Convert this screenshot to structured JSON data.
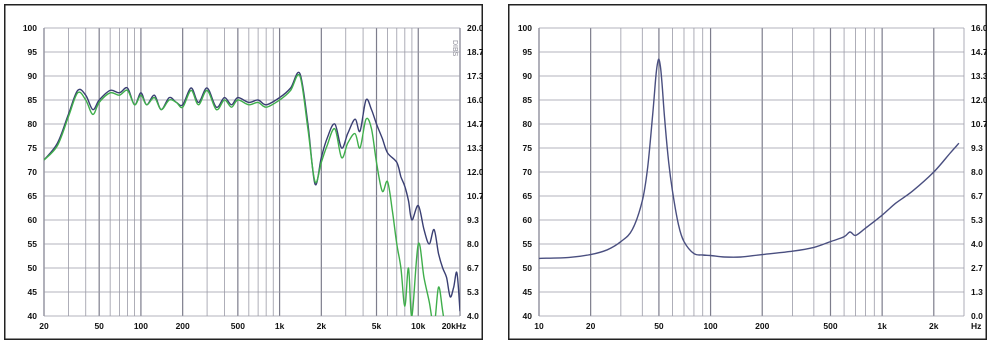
{
  "brand": "DIBS",
  "chart_data": [
    {
      "type": "line",
      "x_scale": "log",
      "xlim": [
        20,
        20000
      ],
      "ylim": [
        40,
        100
      ],
      "ylim_right": [
        4.0,
        20.0
      ],
      "x_ticks": [
        20,
        50,
        100,
        200,
        500,
        1000,
        2000,
        5000,
        10000,
        20000
      ],
      "x_tick_labels": [
        "20",
        "50",
        "100",
        "200",
        "500",
        "1k",
        "2k",
        "5k",
        "10k",
        "20kHz"
      ],
      "y_ticks_left": [
        "40",
        "45",
        "50",
        "55",
        "60",
        "65",
        "70",
        "75",
        "80",
        "85",
        "90",
        "95",
        "100"
      ],
      "y_ticks_right": [
        "4.0",
        "5.3",
        "6.7",
        "8.0",
        "9.3",
        "10.7",
        "12.0",
        "13.3",
        "14.7",
        "16.0",
        "17.3",
        "18.7",
        "20.0"
      ],
      "grid": true,
      "series": [
        {
          "color": "#3a3f73",
          "x": [
            20,
            25,
            30,
            35,
            40,
            45,
            50,
            60,
            70,
            80,
            90,
            100,
            110,
            125,
            140,
            160,
            180,
            200,
            230,
            260,
            300,
            350,
            400,
            450,
            500,
            600,
            700,
            800,
            1000,
            1200,
            1400,
            1600,
            1800,
            2000,
            2200,
            2500,
            2800,
            3100,
            3500,
            3800,
            4200,
            4600,
            5000,
            5500,
            6000,
            7000,
            7500,
            8000,
            8500,
            9000,
            10000,
            11000,
            12000,
            13000,
            14000,
            15000,
            16000,
            17000,
            18000,
            19000,
            20000
          ],
          "y": [
            72.5,
            76,
            82,
            87,
            86,
            83,
            85,
            87,
            86.5,
            87.5,
            84,
            86.5,
            84,
            86,
            83,
            85.5,
            84.5,
            84,
            87.5,
            84.5,
            87.5,
            83.5,
            85.5,
            84,
            85.5,
            84.5,
            85,
            84,
            85.5,
            87.5,
            90.5,
            80,
            67.5,
            73,
            77,
            80,
            75,
            78,
            81,
            78.5,
            85,
            83,
            80,
            77,
            74,
            72,
            69,
            67,
            64,
            60,
            63,
            58,
            55,
            58,
            53,
            50,
            48,
            44,
            46,
            49,
            41
          ]
        },
        {
          "color": "#3fae4b",
          "x": [
            20,
            25,
            30,
            35,
            40,
            45,
            50,
            60,
            70,
            80,
            90,
            100,
            110,
            125,
            140,
            160,
            180,
            200,
            230,
            260,
            300,
            350,
            400,
            450,
            500,
            600,
            700,
            800,
            1000,
            1200,
            1400,
            1600,
            1800,
            2000,
            2200,
            2500,
            2800,
            3100,
            3500,
            3800,
            4200,
            4600,
            5000,
            5500,
            6000,
            6500,
            7000,
            7500,
            8000,
            8500,
            9000,
            10000,
            11000,
            12000,
            13000,
            14000,
            15000,
            16000,
            17000
          ],
          "y": [
            72.5,
            75.5,
            81.5,
            86.5,
            85,
            82,
            84.5,
            86.5,
            86,
            87,
            84,
            86,
            84,
            85.5,
            83,
            85,
            84.5,
            83.5,
            87,
            84,
            87,
            83,
            85,
            83.5,
            85,
            84,
            84.5,
            83.5,
            85,
            87,
            90,
            79,
            68,
            72,
            75.5,
            79,
            73,
            76,
            78,
            75,
            81,
            79,
            72,
            66,
            68,
            62,
            55,
            50,
            42,
            50,
            40,
            55,
            48,
            43,
            38,
            46,
            41,
            36,
            38
          ]
        }
      ]
    },
    {
      "type": "line",
      "x_scale": "log",
      "xlim": [
        10,
        3000
      ],
      "ylim": [
        40,
        100
      ],
      "ylim_right": [
        0.0,
        16.0
      ],
      "x_ticks": [
        10,
        20,
        50,
        100,
        200,
        500,
        1000,
        2000
      ],
      "x_tick_labels": [
        "10",
        "20",
        "50",
        "100",
        "200",
        "500",
        "1k",
        "2k"
      ],
      "x_unit_label": "Hz",
      "y_ticks_left": [
        "40",
        "45",
        "50",
        "55",
        "60",
        "65",
        "70",
        "75",
        "80",
        "85",
        "90",
        "95",
        "100"
      ],
      "y_ticks_right": [
        "0.0",
        "1.3",
        "2.7",
        "4.0",
        "5.3",
        "6.7",
        "8.0",
        "9.3",
        "10.7",
        "12.0",
        "13.3",
        "14.7",
        "16.0"
      ],
      "grid": true,
      "series": [
        {
          "color": "#4a4f80",
          "x": [
            10,
            15,
            20,
            25,
            30,
            35,
            40,
            43,
            46,
            48,
            49,
            50,
            51,
            52,
            54,
            57,
            60,
            65,
            70,
            80,
            90,
            100,
            120,
            150,
            200,
            300,
            400,
            500,
            600,
            650,
            700,
            800,
            1000,
            1200,
            1500,
            2000,
            2500,
            2800
          ],
          "y": [
            52,
            52.2,
            52.8,
            53.8,
            55.5,
            58,
            64,
            71,
            82,
            90,
            92.5,
            93.5,
            92,
            89,
            81,
            72,
            66,
            59,
            55.5,
            53,
            52.7,
            52.6,
            52.3,
            52.3,
            52.8,
            53.5,
            54.3,
            55.5,
            56.5,
            57.5,
            56.8,
            58.3,
            61,
            63.5,
            66,
            70,
            74,
            76
          ]
        }
      ]
    }
  ]
}
